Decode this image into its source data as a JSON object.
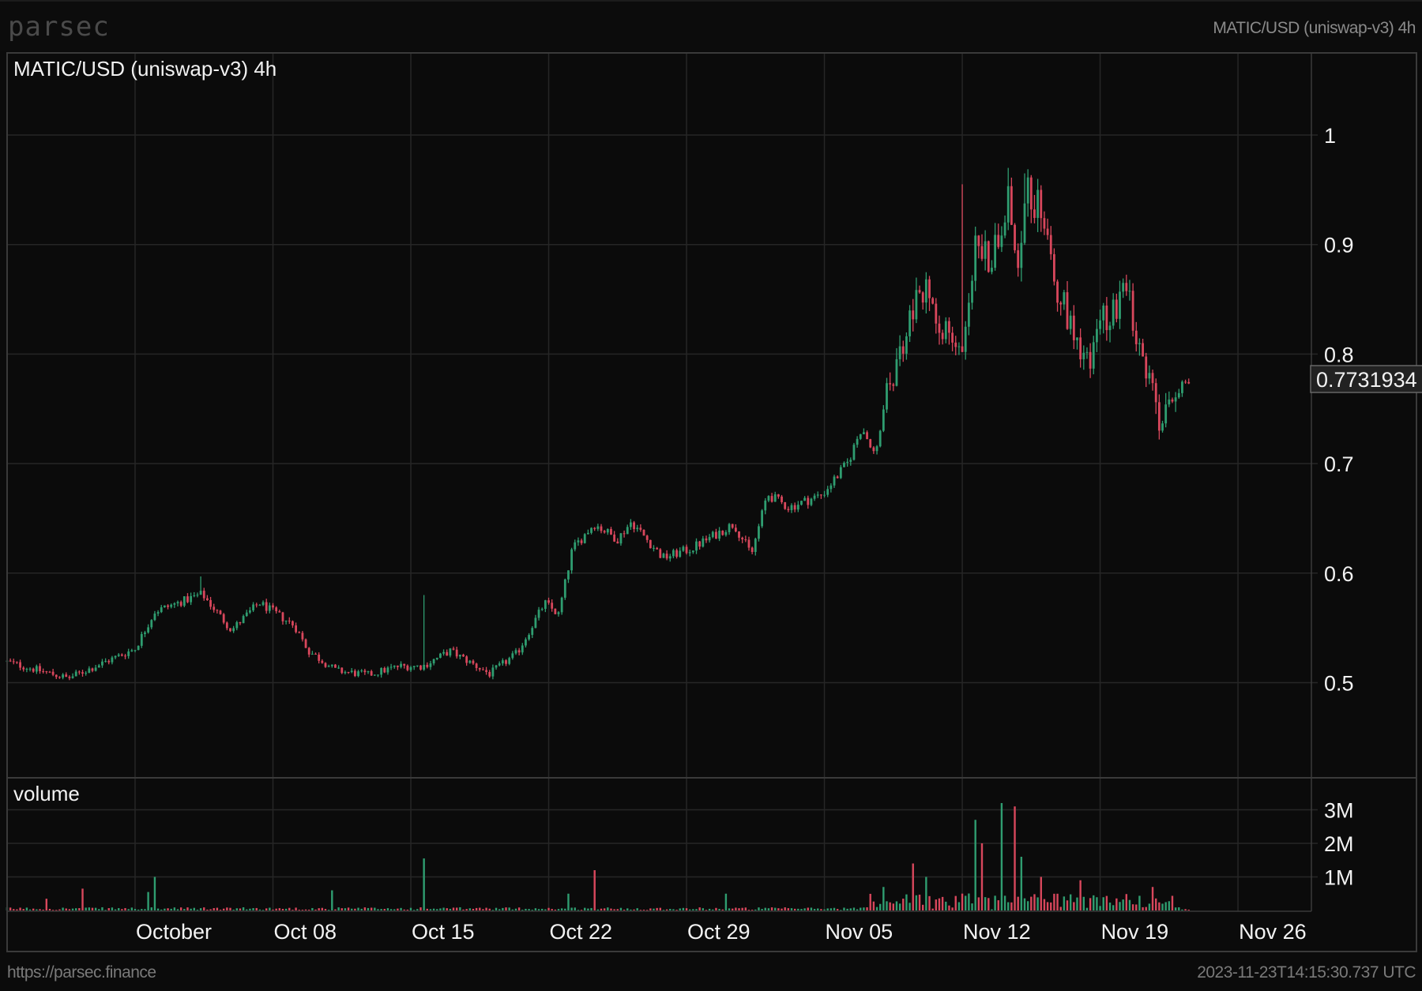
{
  "header": {
    "logo": "parsec",
    "title": "MATIC/USD (uniswap-v3) 4h"
  },
  "footer": {
    "url": "https://parsec.finance",
    "timestamp": "2023-11-23T14:15:30.737 UTC"
  },
  "colors": {
    "up": "#2f9d70",
    "down": "#d8475c",
    "grid": "#262626",
    "frame": "#3a3a3a",
    "background": "#0b0b0b"
  },
  "chart_data": {
    "type": "candlestick",
    "title": "MATIC/USD (uniswap-v3) 4h",
    "interval": "4h",
    "x_unit": "days since Oct 01 2023",
    "xlim": [
      -6.5,
      60.4
    ],
    "x_ticks": [
      {
        "day": 0,
        "label": "October"
      },
      {
        "day": 7,
        "label": "Oct 08"
      },
      {
        "day": 14,
        "label": "Oct 15"
      },
      {
        "day": 21,
        "label": "Oct 22"
      },
      {
        "day": 28,
        "label": "Oct 29"
      },
      {
        "day": 35,
        "label": "Nov 05"
      },
      {
        "day": 42,
        "label": "Nov 12"
      },
      {
        "day": 49,
        "label": "Nov 19"
      },
      {
        "day": 56,
        "label": "Nov 26"
      }
    ],
    "price": {
      "ylim": [
        0.43,
        1.07
      ],
      "y_ticks": [
        {
          "v": 1,
          "label": "1"
        },
        {
          "v": 0.9,
          "label": "0.9"
        },
        {
          "v": 0.8,
          "label": "0.8"
        },
        {
          "v": 0.7,
          "label": "0.7"
        },
        {
          "v": 0.6,
          "label": "0.6"
        },
        {
          "v": 0.5,
          "label": "0.5"
        }
      ],
      "last_price": 0.7731934,
      "last_price_label": "0.7731934",
      "close_path": [
        [
          -6.5,
          0.519
        ],
        [
          -3.4,
          0.504
        ],
        [
          0,
          0.531
        ],
        [
          1.0,
          0.565
        ],
        [
          3.4,
          0.581
        ],
        [
          4.9,
          0.548
        ],
        [
          6.3,
          0.573
        ],
        [
          8.1,
          0.552
        ],
        [
          8.8,
          0.529
        ],
        [
          10.2,
          0.511
        ],
        [
          11.8,
          0.507
        ],
        [
          13.4,
          0.515
        ],
        [
          14.6,
          0.515
        ],
        [
          16.0,
          0.529
        ],
        [
          18.0,
          0.508
        ],
        [
          19.4,
          0.527
        ],
        [
          20.8,
          0.573
        ],
        [
          21.5,
          0.562
        ],
        [
          22.2,
          0.622
        ],
        [
          23.3,
          0.645
        ],
        [
          24.5,
          0.631
        ],
        [
          25.2,
          0.647
        ],
        [
          26.8,
          0.614
        ],
        [
          28.2,
          0.622
        ],
        [
          30.4,
          0.645
        ],
        [
          31.3,
          0.617
        ],
        [
          32.1,
          0.672
        ],
        [
          33.2,
          0.66
        ],
        [
          34.9,
          0.672
        ],
        [
          36.2,
          0.701
        ],
        [
          36.9,
          0.734
        ],
        [
          37.6,
          0.705
        ],
        [
          38.1,
          0.759
        ],
        [
          38.8,
          0.796
        ],
        [
          39.5,
          0.842
        ],
        [
          40.1,
          0.858
        ],
        [
          41.1,
          0.825
        ],
        [
          41.9,
          0.796
        ],
        [
          42.7,
          0.904
        ],
        [
          43.4,
          0.883
        ],
        [
          44.3,
          0.945
        ],
        [
          44.8,
          0.883
        ],
        [
          45.2,
          0.95
        ],
        [
          46.4,
          0.92
        ],
        [
          46.8,
          0.858
        ],
        [
          47.8,
          0.817
        ],
        [
          48.4,
          0.792
        ],
        [
          49.2,
          0.834
        ],
        [
          50.4,
          0.854
        ],
        [
          50.8,
          0.809
        ],
        [
          51.5,
          0.776
        ],
        [
          52.0,
          0.734
        ],
        [
          52.6,
          0.767
        ],
        [
          53.5,
          0.773
        ]
      ],
      "wick_extremes": [
        [
          3.4,
          0.597
        ],
        [
          14.6,
          0.58
        ],
        [
          42.0,
          0.955
        ],
        [
          44.3,
          0.97
        ],
        [
          45.2,
          0.965
        ],
        [
          52.0,
          0.722
        ],
        [
          39.6,
          0.865
        ]
      ]
    },
    "volume": {
      "label": "volume",
      "ylim": [
        0,
        3.5
      ],
      "unit": "M",
      "y_ticks": [
        {
          "v": 3,
          "label": "3M"
        },
        {
          "v": 2,
          "label": "2M"
        },
        {
          "v": 1,
          "label": "1M"
        }
      ],
      "baseline": 0.05,
      "spikes": [
        [
          -4.5,
          0.35
        ],
        [
          -2.7,
          0.65
        ],
        [
          0.6,
          0.55
        ],
        [
          1.0,
          1.0
        ],
        [
          10.0,
          0.6
        ],
        [
          14.6,
          1.55
        ],
        [
          22.0,
          0.5
        ],
        [
          23.3,
          1.2
        ],
        [
          30.0,
          0.5
        ],
        [
          38.0,
          0.7
        ],
        [
          39.5,
          1.4
        ],
        [
          40.2,
          1.0
        ],
        [
          42.6,
          2.7
        ],
        [
          43.0,
          2.0
        ],
        [
          44.0,
          3.2
        ],
        [
          44.6,
          3.1
        ],
        [
          45.0,
          1.6
        ],
        [
          46.0,
          1.0
        ],
        [
          48.0,
          0.9
        ],
        [
          51.6,
          0.7
        ]
      ]
    }
  }
}
